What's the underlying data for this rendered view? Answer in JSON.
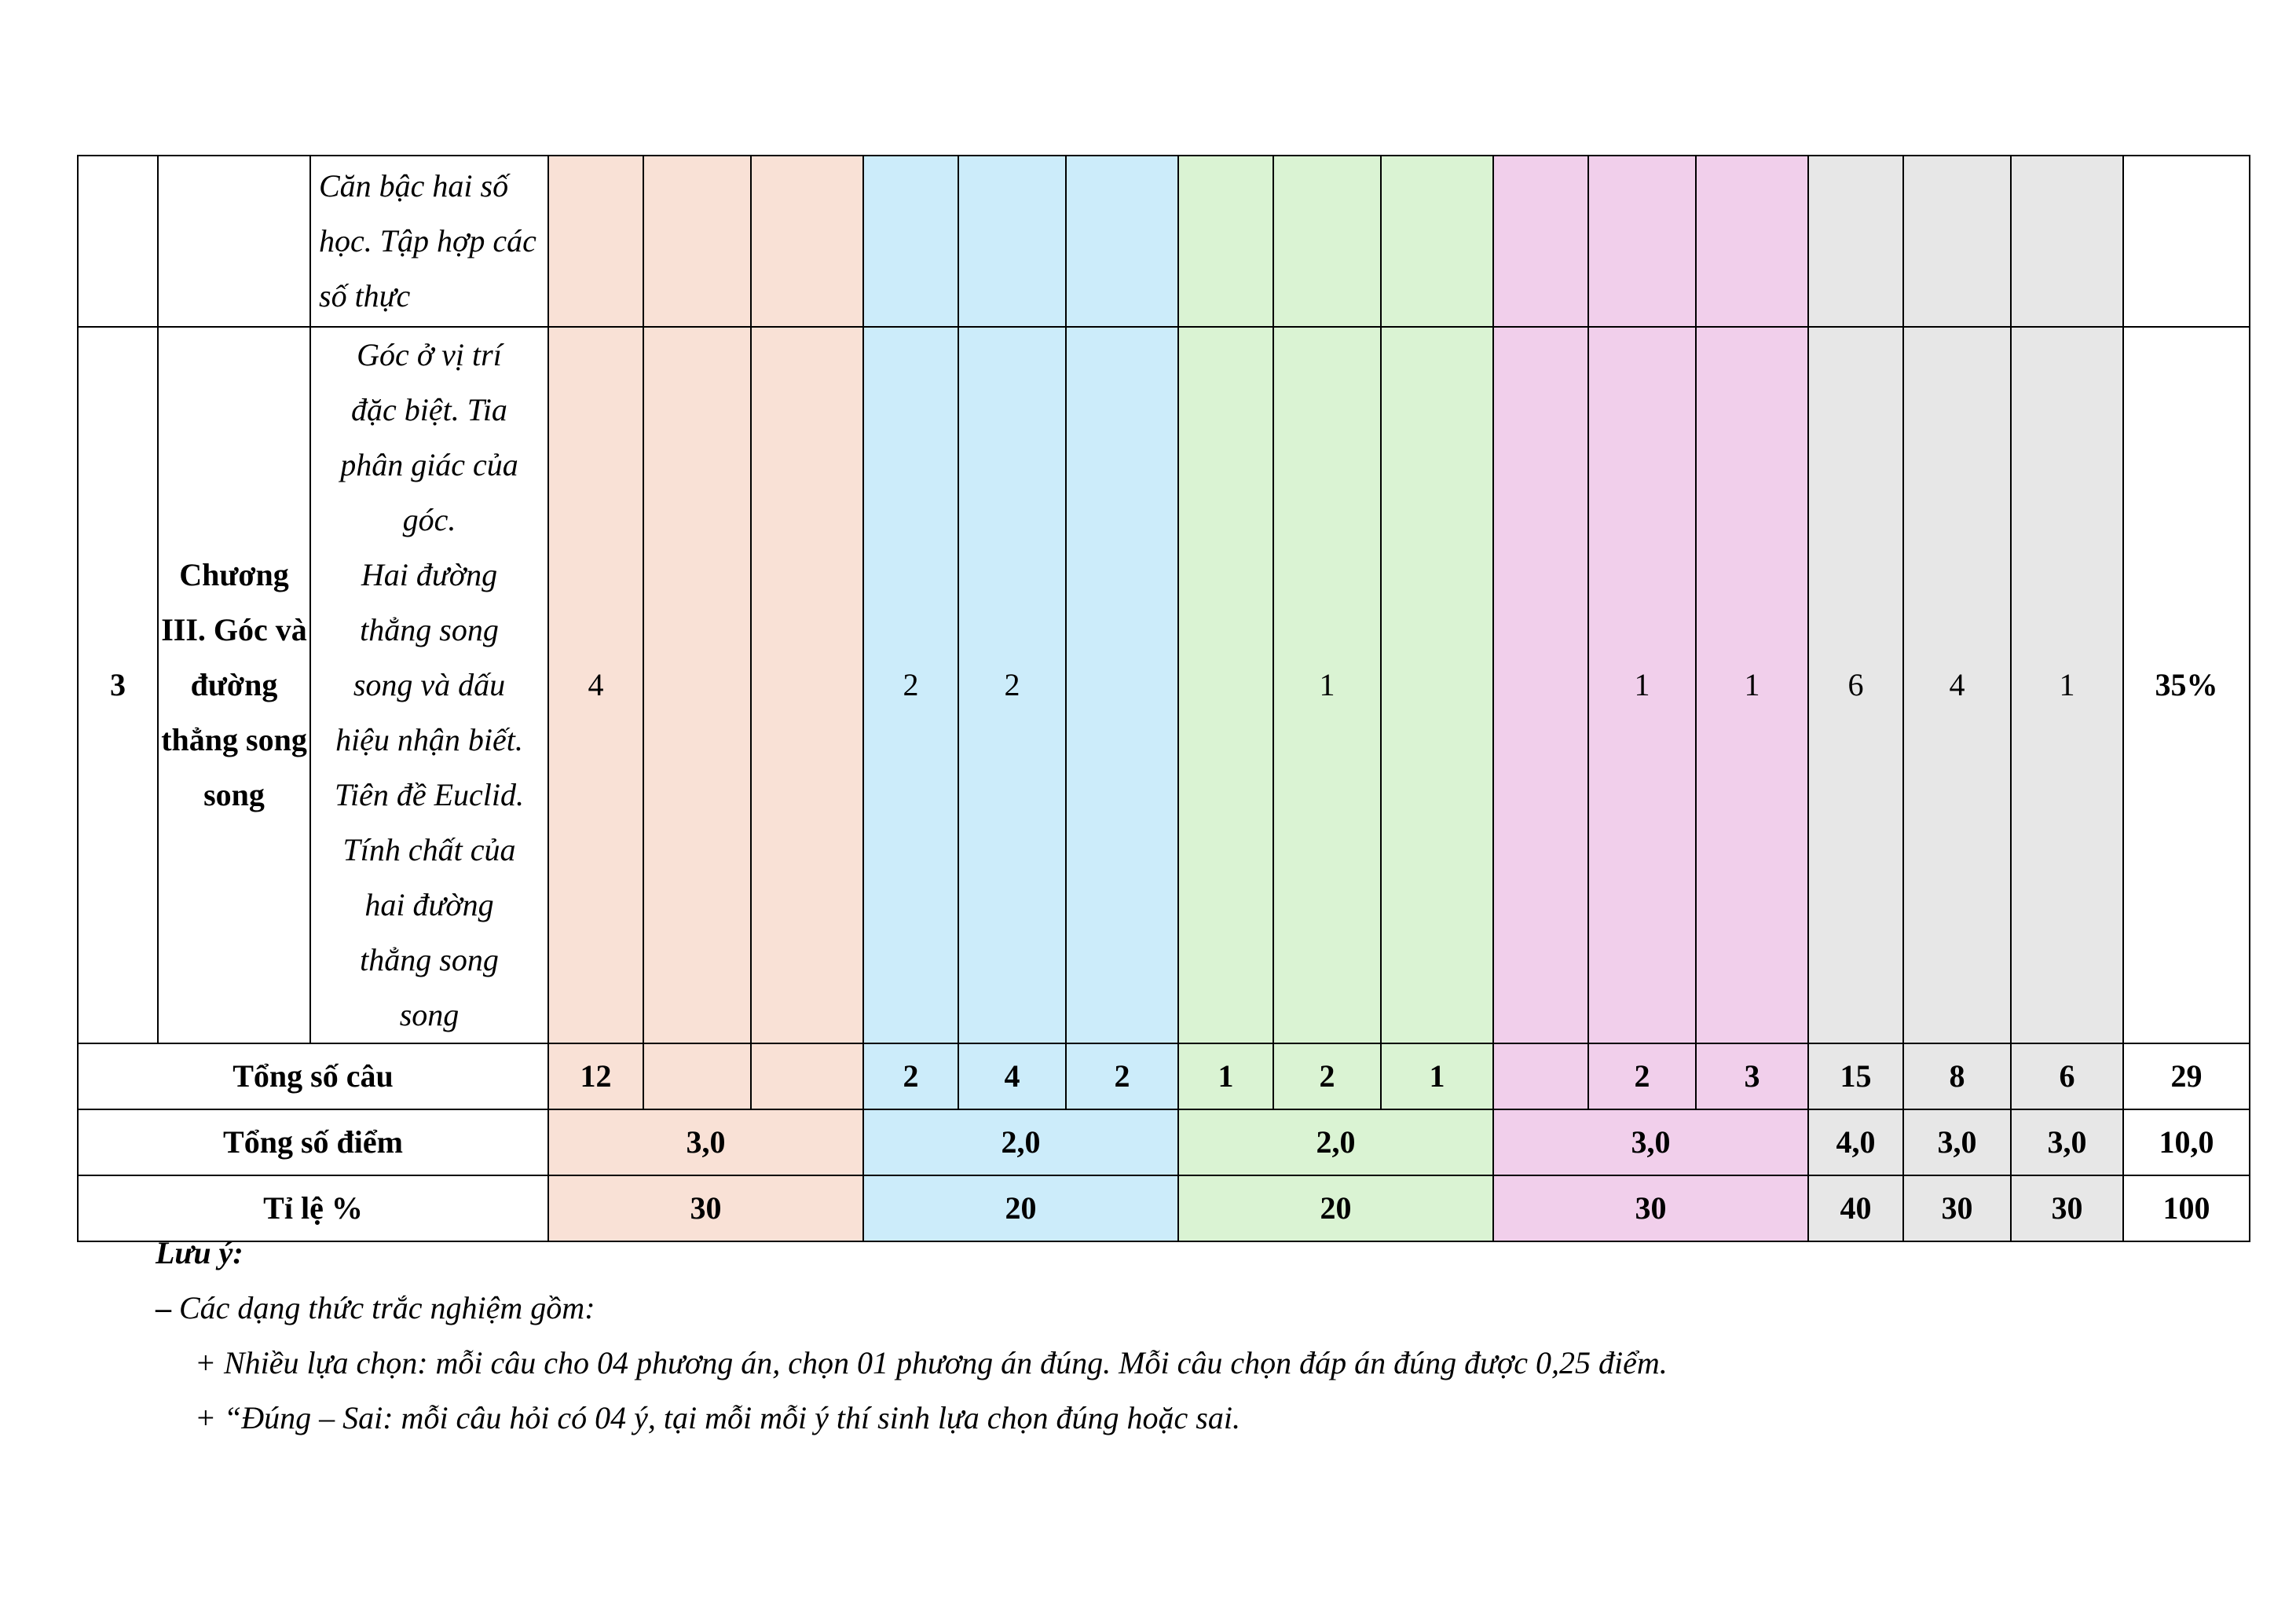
{
  "row_prev": {
    "topic": "Căn bậc hai số học. Tập hợp các số thực"
  },
  "row3": {
    "stt": "3",
    "chapter": "Chương III. Góc và đường thẳng song song",
    "topic_lines": [
      "Góc ở vị trí",
      "đặc biệt. Tia",
      "phân giác của",
      "góc.",
      "Hai đường",
      "thẳng song",
      "song và dấu",
      "hiệu nhận biết.",
      "Tiên đề Euclid.",
      "Tính chất của",
      "hai đường",
      "thẳng song",
      "song"
    ],
    "cells": [
      "4",
      "",
      "",
      "2",
      "2",
      "",
      "",
      "1",
      "",
      "",
      "1",
      "1",
      "6",
      "4",
      "1"
    ],
    "percent": "35%"
  },
  "totals_questions": {
    "label": "Tổng số câu",
    "cells": [
      "12",
      "",
      "",
      "2",
      "4",
      "2",
      "1",
      "2",
      "1",
      "",
      "2",
      "3",
      "15",
      "8",
      "6"
    ],
    "total": "29"
  },
  "totals_points": {
    "label": "Tổng số điểm",
    "groups": [
      "3,0",
      "2,0",
      "2,0",
      "3,0"
    ],
    "cols": [
      "4,0",
      "3,0",
      "3,0"
    ],
    "total": "10,0"
  },
  "ratio": {
    "label": "Tỉ lệ %",
    "groups": [
      "30",
      "20",
      "20",
      "30"
    ],
    "cols": [
      "40",
      "30",
      "30"
    ],
    "total": "100"
  },
  "notes": {
    "title": "Lưu ý:",
    "dash": "–",
    "line1": "Các dạng thức trắc nghiệm gồm:",
    "line2": "+ Nhiều lựa chọn: mỗi câu cho 04 phương án, chọn 01 phương án đúng. Mỗi câu chọn đáp án đúng được 0,25 điểm.",
    "line3": "+ “Đúng – Sai: mỗi câu hỏi có 04 ý, tại mỗi mỗi ý thí sinh lựa chọn đúng hoặc sai."
  },
  "colors": {
    "group1": "#f9e1d6",
    "group2": "#ccecfa",
    "group3": "#daf3d3",
    "group4": "#f1cfeb",
    "totals": "#e7e7e7"
  }
}
